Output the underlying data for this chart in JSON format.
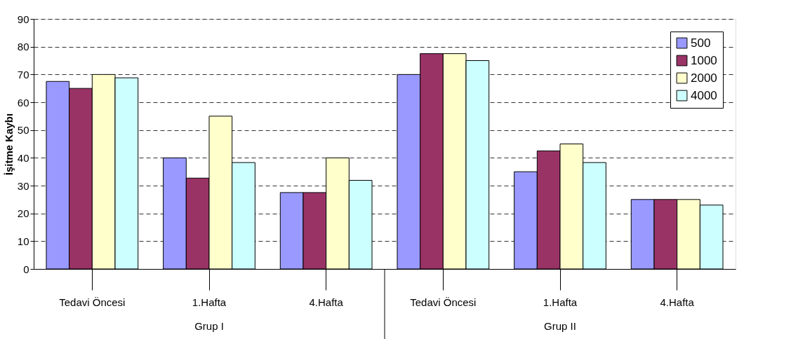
{
  "chart_data": {
    "type": "bar",
    "ylabel": "İşitme Kaybı",
    "categories": [
      "Tedavi Öncesi",
      "1.Hafta",
      "4.Hafta",
      "Tedavi Öncesi",
      "1.Hafta",
      "4.Hafta"
    ],
    "series": [
      {
        "name": "500",
        "color": "#9999ff",
        "values": [
          67.5,
          40,
          27.5,
          70,
          35,
          25
        ]
      },
      {
        "name": "1000",
        "color": "#993366",
        "values": [
          65,
          32.7,
          27.5,
          77.5,
          42.5,
          25
        ]
      },
      {
        "name": "2000",
        "color": "#ffffcc",
        "values": [
          70,
          55,
          40,
          77.5,
          45,
          25
        ]
      },
      {
        "name": "4000",
        "color": "#ccffff",
        "values": [
          68.8,
          38.3,
          31.9,
          75,
          38.3,
          23
        ]
      }
    ],
    "annotations": [
      "Grup I",
      "Grup II"
    ],
    "ylim": [
      0,
      90
    ],
    "yticks": [
      0,
      10,
      20,
      30,
      40,
      50,
      60,
      70,
      80,
      90
    ],
    "grid": "y",
    "legend": "top right"
  }
}
